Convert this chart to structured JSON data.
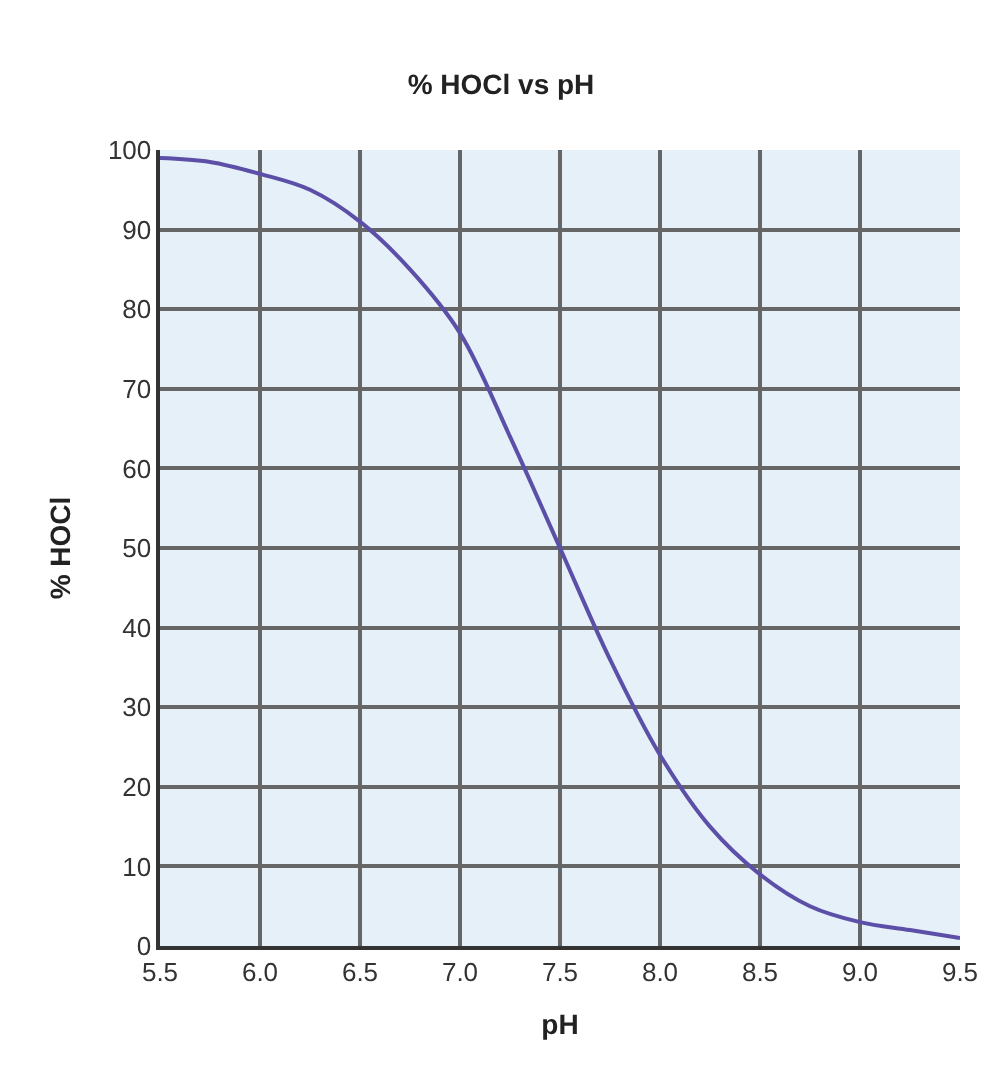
{
  "chart_data": {
    "type": "line",
    "title": "% HOCl vs pH",
    "xlabel": "pH",
    "ylabel": "% HOCl",
    "x": [
      5.5,
      5.75,
      6.0,
      6.25,
      6.5,
      6.75,
      7.0,
      7.25,
      7.5,
      7.75,
      8.0,
      8.25,
      8.5,
      8.75,
      9.0,
      9.25,
      9.5
    ],
    "series": [
      {
        "color": "#5b4fa8",
        "values": [
          99,
          98.5,
          97,
          95,
          91,
          85,
          77,
          64,
          50,
          36,
          24,
          15,
          9,
          5,
          3,
          2,
          1
        ]
      }
    ],
    "xlim": [
      5.5,
      9.5
    ],
    "xticks": [
      {
        "value": 5.5,
        "label": "5.5"
      },
      {
        "value": 6.0,
        "label": "6.0"
      },
      {
        "value": 6.5,
        "label": "6.5"
      },
      {
        "value": 7.0,
        "label": "7.0"
      },
      {
        "value": 7.5,
        "label": "7.5"
      },
      {
        "value": 8.0,
        "label": "8.0"
      },
      {
        "value": 8.5,
        "label": "8.5"
      },
      {
        "value": 9.0,
        "label": "9.0"
      },
      {
        "value": 9.5,
        "label": "9.5"
      }
    ],
    "ylim": [
      0,
      100
    ],
    "yticks": [
      0,
      10,
      20,
      30,
      40,
      50,
      60,
      70,
      80,
      90,
      100
    ],
    "grid": true,
    "marker": "none",
    "line_style": "solid"
  }
}
